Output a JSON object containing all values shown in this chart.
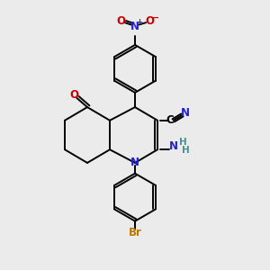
{
  "bg_color": "#ebebeb",
  "atom_colors": {
    "C": "#000000",
    "N": "#2222cc",
    "O": "#cc0000",
    "Br": "#bb7700",
    "H": "#4a9090"
  },
  "bond_lw": 1.4,
  "font_size": 8.5
}
